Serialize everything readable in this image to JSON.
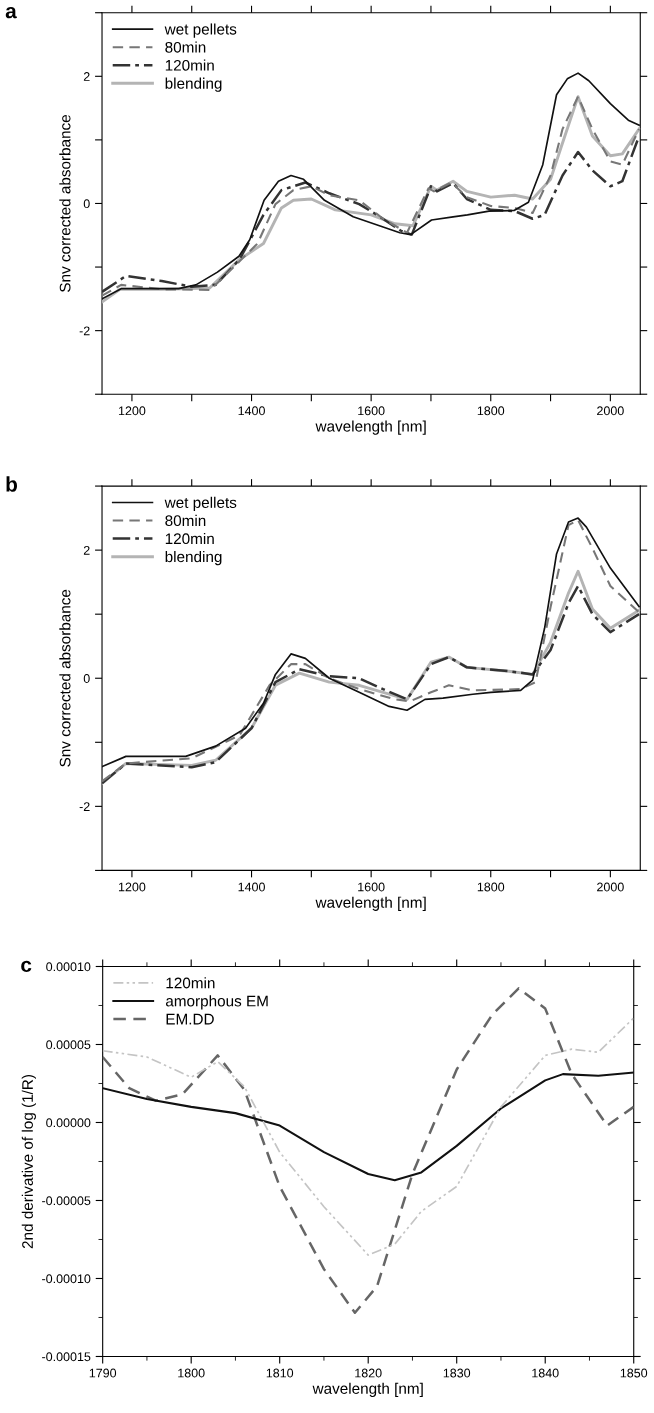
{
  "chart_data": [
    {
      "type": "line",
      "xlabel": "wavelength [nm]",
      "ylabel": "Snv corrected absorbance",
      "annotations": [
        "a"
      ],
      "legend": "top left",
      "grid": false,
      "xlim": [
        1150,
        2050
      ],
      "xticks": [
        1200,
        {
          "value": 1300,
          "label": null
        },
        1400,
        {
          "value": 1500,
          "label": null
        },
        1600,
        {
          "value": 1700,
          "label": null
        },
        1800,
        {
          "value": 1900,
          "label": null
        },
        2000
      ],
      "ylim": [
        -3,
        3
      ],
      "yticks": [
        {
          "value": -3,
          "label": null
        },
        -2,
        {
          "value": -1,
          "label": null
        },
        0,
        {
          "value": 1,
          "label": null
        },
        2,
        {
          "value": 3,
          "label": null
        }
      ],
      "series": [
        {
          "name": "wet pellets",
          "color": "#111111",
          "line_style": "solid",
          "x": [
            1150,
            1182,
            1278,
            1307,
            1343,
            1379,
            1397,
            1421,
            1445,
            1466,
            1487,
            1522,
            1570,
            1648,
            1666,
            1701,
            1737,
            1761,
            1797,
            1839,
            1863,
            1887,
            1910,
            1928,
            1946,
            1964,
            2000,
            2030,
            2048
          ],
          "values": [
            -1.5,
            -1.34,
            -1.34,
            -1.28,
            -1.08,
            -0.83,
            -0.57,
            0.05,
            0.35,
            0.44,
            0.38,
            0.05,
            -0.21,
            -0.46,
            -0.49,
            -0.26,
            -0.21,
            -0.18,
            -0.12,
            -0.11,
            0.02,
            0.61,
            1.71,
            1.96,
            2.05,
            1.93,
            1.57,
            1.31,
            1.23
          ]
        },
        {
          "name": "80min",
          "color": "#777777",
          "line_style": "dashed",
          "x": [
            1150,
            1182,
            1250,
            1331,
            1380,
            1410,
            1440,
            1470,
            1500,
            1530,
            1580,
            1620,
            1660,
            1696,
            1705,
            1734,
            1760,
            1800,
            1840,
            1870,
            1900,
            1920,
            1946,
            1970,
            2000,
            2020,
            2048
          ],
          "values": [
            -1.45,
            -1.28,
            -1.35,
            -1.36,
            -0.91,
            -0.63,
            -0.01,
            0.21,
            0.27,
            0.13,
            0.05,
            -0.24,
            -0.46,
            0.24,
            0.19,
            0.33,
            0.1,
            -0.04,
            -0.07,
            -0.15,
            0.44,
            1.17,
            1.68,
            1.17,
            0.66,
            0.61,
            1.17
          ]
        },
        {
          "name": "120min",
          "color": "#333333",
          "line_style": "dashdot",
          "x": [
            1150,
            1190,
            1250,
            1300,
            1340,
            1380,
            1420,
            1450,
            1490,
            1530,
            1580,
            1610,
            1650,
            1668,
            1700,
            1710,
            1737,
            1760,
            1800,
            1840,
            1870,
            1890,
            1920,
            1946,
            1970,
            2000,
            2020,
            2048
          ],
          "values": [
            -1.39,
            -1.14,
            -1.22,
            -1.31,
            -1.28,
            -0.88,
            -0.18,
            0.21,
            0.33,
            0.16,
            -0.01,
            -0.18,
            -0.43,
            -0.49,
            0.27,
            0.19,
            0.32,
            0.07,
            -0.1,
            -0.12,
            -0.24,
            -0.18,
            0.44,
            0.81,
            0.52,
            0.27,
            0.35,
            1.06
          ]
        },
        {
          "name": "blending",
          "color": "#b4b4b4",
          "line_style": "solid",
          "x": [
            1150,
            1180,
            1250,
            1330,
            1380,
            1420,
            1450,
            1470,
            1500,
            1540,
            1600,
            1640,
            1670,
            1700,
            1710,
            1737,
            1760,
            1800,
            1840,
            1870,
            1900,
            1920,
            1946,
            1970,
            2000,
            2020,
            2048
          ],
          "values": [
            -1.55,
            -1.35,
            -1.35,
            -1.33,
            -0.88,
            -0.63,
            -0.07,
            0.05,
            0.07,
            -0.1,
            -0.18,
            -0.32,
            -0.35,
            0.27,
            0.21,
            0.35,
            0.19,
            0.1,
            0.13,
            0.07,
            0.38,
            0.95,
            1.68,
            1.06,
            0.75,
            0.78,
            1.17
          ]
        }
      ]
    },
    {
      "type": "line",
      "xlabel": "wavelength [nm]",
      "ylabel": "Snv corrected absorbance",
      "annotations": [
        "b"
      ],
      "legend": "top left",
      "grid": false,
      "xlim": [
        1150,
        2050
      ],
      "xticks": [
        1200,
        {
          "value": 1300,
          "label": null
        },
        1400,
        {
          "value": 1500,
          "label": null
        },
        1600,
        {
          "value": 1700,
          "label": null
        },
        1800,
        {
          "value": 1900,
          "label": null
        },
        2000
      ],
      "ylim": [
        -3,
        3
      ],
      "yticks": [
        {
          "value": -3,
          "label": null
        },
        -2,
        {
          "value": -1,
          "label": null
        },
        0,
        {
          "value": 1,
          "label": null
        },
        2,
        {
          "value": 3,
          "label": null
        }
      ],
      "series": [
        {
          "name": "wet pellets",
          "color": "#111111",
          "line_style": "solid",
          "x": [
            1150,
            1190,
            1290,
            1340,
            1390,
            1420,
            1440,
            1466,
            1490,
            1530,
            1580,
            1630,
            1660,
            1690,
            1720,
            1770,
            1800,
            1850,
            1870,
            1890,
            1910,
            1930,
            1946,
            1960,
            2000,
            2048
          ],
          "values": [
            -1.38,
            -1.22,
            -1.22,
            -1.06,
            -0.78,
            -0.39,
            0.06,
            0.38,
            0.31,
            0.0,
            -0.22,
            -0.44,
            -0.5,
            -0.33,
            -0.31,
            -0.25,
            -0.22,
            -0.19,
            -0.03,
            0.78,
            1.94,
            2.44,
            2.5,
            2.36,
            1.72,
            1.12
          ]
        },
        {
          "name": "80min",
          "color": "#777777",
          "line_style": "dashed",
          "x": [
            1150,
            1190,
            1300,
            1380,
            1430,
            1466,
            1490,
            1530,
            1580,
            1640,
            1665,
            1700,
            1730,
            1770,
            1850,
            1875,
            1900,
            1930,
            1946,
            1970,
            2000,
            2048
          ],
          "values": [
            -1.61,
            -1.33,
            -1.25,
            -0.89,
            -0.11,
            0.22,
            0.22,
            0.0,
            -0.17,
            -0.33,
            -0.36,
            -0.22,
            -0.11,
            -0.19,
            -0.17,
            -0.06,
            1.11,
            2.39,
            2.47,
            2.03,
            1.44,
            1.03
          ]
        },
        {
          "name": "120min",
          "color": "#333333",
          "line_style": "dashdot",
          "x": [
            1150,
            1190,
            1300,
            1340,
            1400,
            1440,
            1480,
            1530,
            1580,
            1620,
            1660,
            1700,
            1730,
            1760,
            1830,
            1870,
            1900,
            1930,
            1946,
            1970,
            2000,
            2048
          ],
          "values": [
            -1.64,
            -1.33,
            -1.39,
            -1.31,
            -0.78,
            -0.06,
            0.14,
            0.03,
            0.0,
            -0.17,
            -0.33,
            0.22,
            0.33,
            0.17,
            0.11,
            0.06,
            0.44,
            1.17,
            1.44,
            1.0,
            0.72,
            1.0
          ]
        },
        {
          "name": "blending",
          "color": "#b4b4b4",
          "line_style": "solid",
          "x": [
            1150,
            1190,
            1300,
            1340,
            1400,
            1440,
            1480,
            1530,
            1580,
            1620,
            1660,
            1700,
            1730,
            1760,
            1830,
            1870,
            1900,
            1930,
            1946,
            1970,
            2000,
            2048
          ],
          "values": [
            -1.64,
            -1.33,
            -1.36,
            -1.28,
            -0.78,
            -0.11,
            0.08,
            -0.06,
            -0.11,
            -0.22,
            -0.33,
            0.25,
            0.33,
            0.17,
            0.11,
            0.06,
            0.56,
            1.33,
            1.67,
            1.08,
            0.78,
            1.06
          ]
        }
      ]
    },
    {
      "type": "line",
      "xlabel": "wavelength [nm]",
      "ylabel": "2nd derivative of log (1/R)",
      "annotations": [
        "c"
      ],
      "legend": "top left",
      "grid": false,
      "xlim": [
        1790,
        1850
      ],
      "xticks": [
        1790,
        1800,
        1810,
        1820,
        1830,
        1840,
        1850
      ],
      "ylim": [
        -0.00015,
        0.0001
      ],
      "yticks": [
        {
          "value": -0.00015,
          "label": "-0.00015"
        },
        {
          "value": -0.0001,
          "label": "-0.00010"
        },
        {
          "value": -5e-05,
          "label": "-0.00005"
        },
        {
          "value": 0,
          "label": "0.00000"
        },
        {
          "value": 5e-05,
          "label": "0.00005"
        },
        {
          "value": 0.0001,
          "label": "0.00010"
        }
      ],
      "series": [
        {
          "name": "120min",
          "color": "#c4c4c4",
          "line_style": "dashdotdot",
          "x": [
            1790,
            1795,
            1800,
            1803,
            1806,
            1810,
            1815,
            1820,
            1823,
            1826,
            1830,
            1835,
            1840,
            1843,
            1846,
            1850
          ],
          "values": [
            4.6e-05,
            4.2e-05,
            2.9e-05,
            3.9e-05,
            2.3e-05,
            -1.9e-05,
            -5.4e-05,
            -8.5e-05,
            -7.8e-05,
            -5.7e-05,
            -4.1e-05,
            1e-05,
            4.3e-05,
            4.7e-05,
            4.5e-05,
            6.7e-05
          ]
        },
        {
          "name": "amorphous EM",
          "color": "#111111",
          "line_style": "solid",
          "x": [
            1790,
            1795,
            1800,
            1805,
            1810,
            1815,
            1820,
            1823,
            1826,
            1830,
            1835,
            1840,
            1842,
            1846,
            1850
          ],
          "values": [
            2.2e-05,
            1.5e-05,
            1e-05,
            6e-06,
            -2e-06,
            -1.9e-05,
            -3.3e-05,
            -3.7e-05,
            -3.2e-05,
            -1.5e-05,
            9e-06,
            2.7e-05,
            3.1e-05,
            3e-05,
            3.2e-05
          ]
        },
        {
          "name": "EM.DD",
          "color": "#666666",
          "line_style": "dashed",
          "x": [
            1790,
            1793,
            1796,
            1799,
            1803,
            1806,
            1810,
            1815,
            1818.5,
            1821,
            1825,
            1830,
            1834,
            1837,
            1840,
            1843,
            1847,
            1850
          ],
          "values": [
            4.2e-05,
            2.2e-05,
            1.4e-05,
            1.8e-05,
            4.3e-05,
            2.1e-05,
            -4.1e-05,
            -9.4e-05,
            -0.000122,
            -0.000105,
            -3.3e-05,
            3.4e-05,
            6.9e-05,
            8.6e-05,
            7.3e-05,
            3.1e-05,
            -2e-06,
            1e-05
          ]
        }
      ]
    }
  ]
}
